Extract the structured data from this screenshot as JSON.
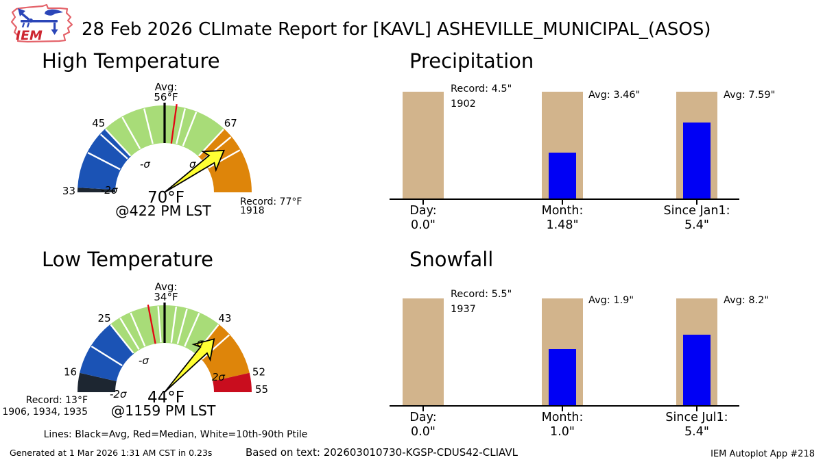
{
  "header": {
    "title": "28 Feb 2026 CLImate Report for [KAVL] ASHEVILLE_MUNICIPAL_(ASOS)",
    "logo_text": "IEM"
  },
  "legend_note": "Lines: Black=Avg, Red=Median, White=10th-90th Ptile",
  "footer": {
    "generated": "Generated at 1 Mar 2026 1:31 AM CST in 0.23s",
    "based_on": "Based on text: 202603010730-KGSP-CDUS42-CLIAVL",
    "app": "IEM Autoplot App #218"
  },
  "colors": {
    "bar_reference": "#d2b48c",
    "bar_value": "#0000f5",
    "needle_fill": "#ffff33",
    "needle_stroke": "#000000",
    "white_tick": "#ffffff",
    "avg_tick": "#000000",
    "median_tick": "#e30613",
    "logo_red": "#cd2630",
    "logo_outline": "#e4636a",
    "logo_blue": "#2b46b8"
  },
  "chart_data": [
    {
      "type": "gauge",
      "id": "high-temp",
      "title": "High Temperature",
      "min": 33,
      "max": 79,
      "segments": [
        {
          "from": 33,
          "to": 33.8,
          "color": "#1d2631"
        },
        {
          "from": 33.8,
          "to": 45,
          "color": "#1b53b5"
        },
        {
          "from": 45,
          "to": 67,
          "color": "#a8dc78"
        },
        {
          "from": 67,
          "to": 79,
          "color": "#de850a"
        }
      ],
      "white_ticks": [
        40,
        43.8,
        45,
        48.5,
        52.5,
        59.5,
        61.5,
        67,
        68.8,
        71.5
      ],
      "avg": {
        "value": 56,
        "label_line1": "Avg:",
        "label_line2": "56°F"
      },
      "median_value": 58,
      "needle_value": 70,
      "value_label": "70°F",
      "time_label": "@422 PM LST",
      "outer_labels": [
        {
          "value": 33,
          "text": "33",
          "end": "left"
        },
        {
          "value": 45,
          "text": "45"
        },
        {
          "value": 67,
          "text": "67"
        }
      ],
      "sigma_labels": [
        "-2σ",
        "-σ",
        "σ"
      ],
      "record": {
        "lines": [
          "Record: 77°F",
          "1918"
        ],
        "side": "right"
      }
    },
    {
      "type": "gauge",
      "id": "low-temp",
      "title": "Low Temperature",
      "min": 13,
      "max": 55,
      "segments": [
        {
          "from": 13,
          "to": 16,
          "color": "#1d2631"
        },
        {
          "from": 16,
          "to": 25,
          "color": "#1b53b5"
        },
        {
          "from": 25,
          "to": 43,
          "color": "#a8dc78"
        },
        {
          "from": 43,
          "to": 52,
          "color": "#de850a"
        },
        {
          "from": 52,
          "to": 55,
          "color": "#c90d1e"
        }
      ],
      "white_ticks": [
        20.5,
        25,
        26.8,
        28.6,
        33,
        35.8,
        37.5,
        39.5,
        43,
        45.3
      ],
      "avg": {
        "value": 34,
        "label_line1": "Avg:",
        "label_line2": "34°F"
      },
      "median_value": 31.5,
      "needle_value": 44,
      "value_label": "44°F",
      "time_label": "@1159 PM LST",
      "outer_labels": [
        {
          "value": 16,
          "text": "16"
        },
        {
          "value": 25,
          "text": "25"
        },
        {
          "value": 43,
          "text": "43"
        },
        {
          "value": 52,
          "text": "52"
        },
        {
          "value": 55,
          "text": "55",
          "end": "right"
        }
      ],
      "sigma_labels": [
        "-2σ",
        "-σ",
        "σ",
        "2σ"
      ],
      "record": {
        "lines": [
          "Record: 13°F",
          "1906, 1934, 1935"
        ],
        "side": "left"
      }
    },
    {
      "type": "bar",
      "id": "precipitation",
      "title": "Precipitation",
      "groups": [
        {
          "label": "Day:",
          "value_text": "0.0\"",
          "value": 0.0,
          "reference": 4.5,
          "annotation": [
            "Record: 4.5\"",
            "1902"
          ]
        },
        {
          "label": "Month:",
          "value_text": "1.48\"",
          "value": 1.48,
          "reference": 3.46,
          "annotation": [
            "Avg: 3.46\""
          ]
        },
        {
          "label": "Since Jan1:",
          "value_text": "5.4\"",
          "value": 5.4,
          "reference": 7.59,
          "annotation": [
            "Avg: 7.59\""
          ]
        }
      ]
    },
    {
      "type": "bar",
      "id": "snowfall",
      "title": "Snowfall",
      "groups": [
        {
          "label": "Day:",
          "value_text": "0.0\"",
          "value": 0.0,
          "reference": 5.5,
          "annotation": [
            "Record: 5.5\"",
            "1937"
          ]
        },
        {
          "label": "Month:",
          "value_text": "1.0\"",
          "value": 1.0,
          "reference": 1.9,
          "annotation": [
            "Avg: 1.9\""
          ]
        },
        {
          "label": "Since Jul1:",
          "value_text": "5.4\"",
          "value": 5.4,
          "reference": 8.2,
          "annotation": [
            "Avg: 8.2\""
          ]
        }
      ]
    }
  ]
}
